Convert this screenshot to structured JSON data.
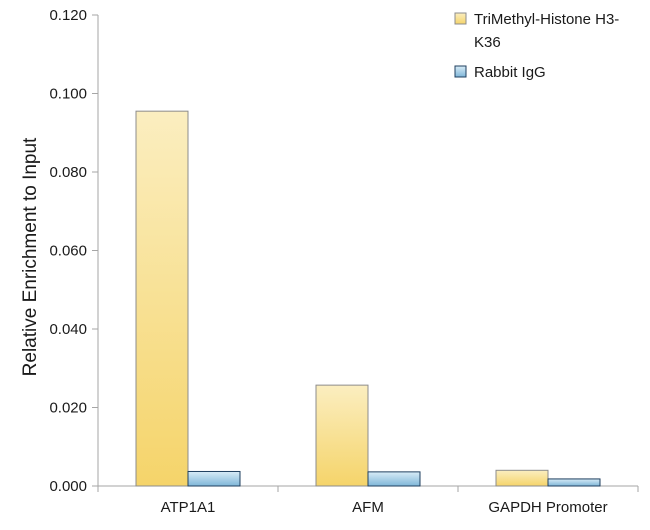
{
  "chart_data": {
    "type": "bar",
    "title": "",
    "xlabel": "",
    "ylabel": "Relative Enrichment to Input",
    "ylim": [
      0,
      0.12
    ],
    "yticks": [
      "0.000",
      "0.020",
      "0.040",
      "0.060",
      "0.080",
      "0.100",
      "0.120"
    ],
    "categories": [
      "ATP1A1",
      "AFM",
      "GAPDH Promoter"
    ],
    "series": [
      {
        "name": "TriMethyl-Histone H3-K36",
        "values": [
          0.0955,
          0.0257,
          0.004
        ]
      },
      {
        "name": "Rabbit IgG",
        "values": [
          0.0037,
          0.0036,
          0.0018
        ]
      }
    ],
    "legend": {
      "position": "top-right",
      "lines": [
        [
          "TriMethyl-Histone H3-",
          "K36"
        ],
        [
          "Rabbit IgG"
        ]
      ]
    },
    "colors": {
      "series_0_light": "#fbeec0",
      "series_0_dark": "#f5d46a",
      "series_0_stroke": "#8c8c8c",
      "series_1_light": "#d8ecf7",
      "series_1_dark": "#7fb6d8",
      "series_1_stroke": "#1f3f5f",
      "axis": "#a6a6a6"
    }
  }
}
